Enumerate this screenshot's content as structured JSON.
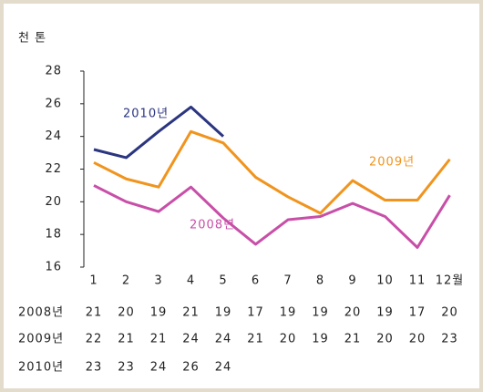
{
  "chart_data": {
    "type": "line",
    "y_axis_label": "천 톤",
    "categories": [
      "1",
      "2",
      "3",
      "4",
      "5",
      "6",
      "7",
      "8",
      "9",
      "10",
      "11",
      "12월"
    ],
    "ylim": [
      16,
      28
    ],
    "yticks": [
      16,
      18,
      20,
      22,
      24,
      26,
      28
    ],
    "series": [
      {
        "name": "2008년",
        "color": "#c84fa8",
        "values": [
          21.0,
          20.0,
          19.4,
          20.9,
          19.0,
          17.4,
          18.9,
          19.1,
          19.9,
          19.1,
          17.2,
          20.4
        ],
        "value_labels": [
          "21",
          "20",
          "19",
          "21",
          "19",
          "17",
          "19",
          "19",
          "20",
          "19",
          "17",
          "20"
        ]
      },
      {
        "name": "2009년",
        "color": "#f0941e",
        "values": [
          22.4,
          21.4,
          20.9,
          24.3,
          23.6,
          21.5,
          20.3,
          19.3,
          21.3,
          20.1,
          20.1,
          22.6
        ],
        "value_labels": [
          "22",
          "21",
          "21",
          "24",
          "24",
          "21",
          "20",
          "19",
          "21",
          "20",
          "20",
          "23"
        ]
      },
      {
        "name": "2010년",
        "color": "#2b3580",
        "values": [
          23.2,
          22.7,
          24.3,
          25.8,
          24.0,
          null,
          null,
          null,
          null,
          null,
          null,
          null
        ],
        "value_labels": [
          "23",
          "23",
          "24",
          "26",
          "24",
          null,
          null,
          null,
          null,
          null,
          null,
          null
        ]
      }
    ]
  }
}
